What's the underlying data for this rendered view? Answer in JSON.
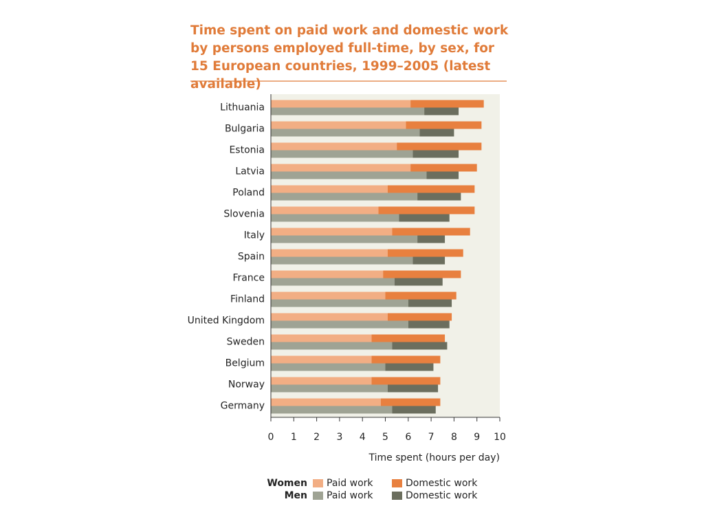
{
  "chart_data": {
    "type": "bar",
    "orientation": "horizontal",
    "stacked": true,
    "title": "Time spent on paid work and domestic work by persons employed full-time, by sex, for 15 European countries, 1999–2005 (latest available)",
    "x_label": "Time spent  (hours per day)",
    "categories": [
      "Lithuania",
      "Bulgaria",
      "Estonia",
      "Latvia",
      "Poland",
      "Slovenia",
      "Italy",
      "Spain",
      "France",
      "Finland",
      "United Kingdom",
      "Sweden",
      "Belgium",
      "Norway",
      "Germany"
    ],
    "series": [
      {
        "group": "Women",
        "name": "Paid work",
        "color": "#f2ae84",
        "values": [
          6.1,
          5.9,
          5.5,
          6.1,
          5.1,
          4.7,
          5.3,
          5.1,
          4.9,
          5.0,
          5.1,
          4.4,
          4.4,
          4.4,
          4.8
        ]
      },
      {
        "group": "Women",
        "name": "Domestic work",
        "color": "#e8803f",
        "values": [
          3.2,
          3.3,
          3.7,
          2.9,
          3.8,
          4.2,
          3.4,
          3.3,
          3.4,
          3.1,
          2.8,
          3.2,
          3.0,
          3.0,
          2.6
        ]
      },
      {
        "group": "Men",
        "name": "Paid work",
        "color": "#9fa394",
        "values": [
          6.7,
          6.5,
          6.2,
          6.8,
          6.4,
          5.6,
          6.4,
          6.2,
          5.4,
          6.0,
          6.0,
          5.3,
          5.0,
          5.1,
          5.3
        ]
      },
      {
        "group": "Men",
        "name": "Domestic work",
        "color": "#6b6e5e",
        "values": [
          1.5,
          1.5,
          2.0,
          1.4,
          1.9,
          2.2,
          1.2,
          1.4,
          2.1,
          1.9,
          1.8,
          2.4,
          2.1,
          2.2,
          1.9
        ]
      }
    ],
    "xlim": [
      0,
      10
    ],
    "xticks": [
      0,
      1,
      2,
      3,
      4,
      5,
      6,
      7,
      8,
      9,
      10
    ]
  }
}
